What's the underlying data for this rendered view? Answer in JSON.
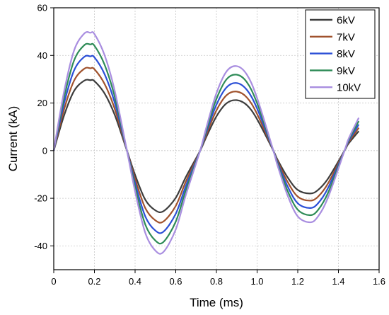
{
  "chart_data": {
    "type": "line",
    "xlabel": "Time (ms)",
    "ylabel": "Current (kA)",
    "xlim": [
      0,
      1.6
    ],
    "ylim": [
      -50,
      60
    ],
    "xticks": [
      0,
      0.2,
      0.4,
      0.6,
      0.8,
      1.0,
      1.2,
      1.4,
      1.6
    ],
    "xtick_labels": [
      "0",
      "0.2",
      "0.4",
      "0.6",
      "0.8",
      "1.0",
      "1.2",
      "1.4",
      "1.6"
    ],
    "yticks": [
      -40,
      -20,
      0,
      20,
      40,
      60
    ],
    "ytick_labels": [
      "-40",
      "-20",
      "0",
      "20",
      "40",
      "60"
    ],
    "grid": true,
    "legend": "top-right",
    "x": [
      0,
      0.05,
      0.1,
      0.15,
      0.18,
      0.2,
      0.25,
      0.3,
      0.36,
      0.4,
      0.45,
      0.5,
      0.54,
      0.6,
      0.65,
      0.72,
      0.75,
      0.8,
      0.85,
      0.9,
      0.95,
      1.0,
      1.08,
      1.1,
      1.15,
      1.2,
      1.26,
      1.3,
      1.35,
      1.43,
      1.45,
      1.5
    ],
    "series": [
      {
        "name": "6kV",
        "color": "#3d3d3d",
        "values": [
          0,
          14.6,
          25.1,
          29.4,
          29.6,
          29.2,
          24.0,
          15.0,
          0,
          -10.2,
          -20.6,
          -25.1,
          -25.4,
          -19.8,
          -11.0,
          0,
          5.7,
          14.4,
          19.9,
          21.2,
          19.1,
          13.2,
          0,
          -3.7,
          -11.2,
          -16.5,
          -18.0,
          -16.5,
          -11.6,
          0,
          3.0,
          8.2
        ]
      },
      {
        "name": "7kV",
        "color": "#a0522d",
        "values": [
          0,
          17.1,
          29.4,
          34.4,
          34.6,
          34.2,
          28.0,
          17.5,
          0,
          -11.9,
          -24.1,
          -29.3,
          -29.7,
          -23.2,
          -12.9,
          0,
          6.7,
          16.9,
          23.3,
          24.8,
          22.3,
          15.4,
          0,
          -4.3,
          -13.1,
          -19.3,
          -21.0,
          -19.3,
          -13.6,
          0,
          3.5,
          9.6
        ]
      },
      {
        "name": "8kV",
        "color": "#2b4fd6",
        "values": [
          0,
          19.6,
          33.7,
          39.4,
          39.6,
          39.2,
          32.1,
          20.1,
          0,
          -13.7,
          -27.6,
          -33.6,
          -34.0,
          -26.5,
          -14.8,
          0,
          7.7,
          19.3,
          26.6,
          28.4,
          25.5,
          17.7,
          0,
          -4.9,
          -15.0,
          -22.1,
          -24.1,
          -22.1,
          -15.5,
          0,
          4.0,
          11.0
        ]
      },
      {
        "name": "9kV",
        "color": "#2e8b57",
        "values": [
          0,
          22.0,
          37.9,
          44.3,
          44.6,
          44.1,
          36.1,
          22.6,
          0,
          -15.4,
          -31.0,
          -37.8,
          -38.3,
          -29.8,
          -16.6,
          0,
          8.6,
          21.7,
          30.0,
          31.9,
          28.7,
          19.9,
          0,
          -5.5,
          -16.9,
          -24.8,
          -27.1,
          -24.9,
          -17.5,
          0,
          4.5,
          12.4
        ]
      },
      {
        "name": "10kV",
        "color": "#a98ee0",
        "values": [
          0,
          24.5,
          42.1,
          49.2,
          49.5,
          49.0,
          40.1,
          25.1,
          0,
          -17.1,
          -34.5,
          -42.0,
          -42.5,
          -33.1,
          -18.5,
          0,
          9.6,
          24.1,
          33.3,
          35.5,
          31.9,
          22.1,
          0,
          -6.1,
          -18.8,
          -27.6,
          -30.1,
          -27.6,
          -19.4,
          0,
          5.0,
          13.8
        ]
      }
    ]
  }
}
